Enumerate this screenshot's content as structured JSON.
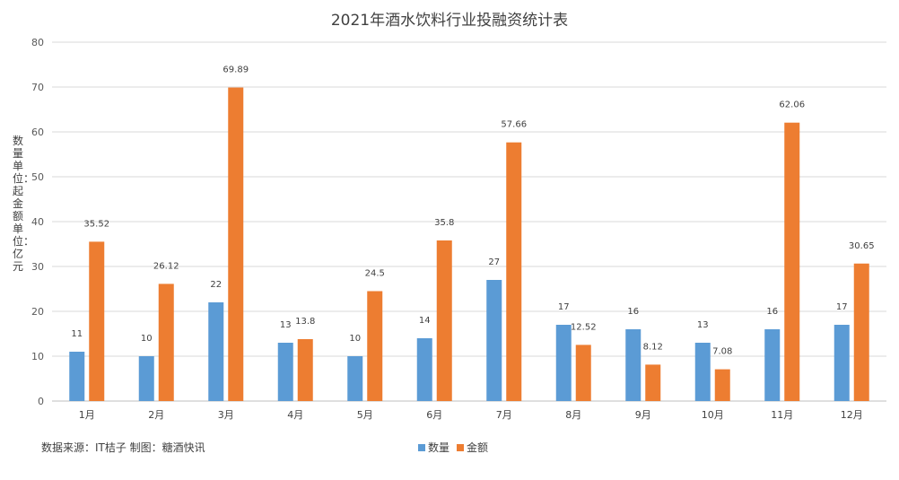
{
  "chart_data": {
    "type": "bar",
    "title": "2021年酒水饮料行业投融资统计表",
    "ylabel": "数量单位：起 金额单位：亿元",
    "ylim": [
      0,
      80
    ],
    "yticks": [
      0,
      10,
      20,
      30,
      40,
      50,
      60,
      70,
      80
    ],
    "grid": true,
    "legend_position": "bottom-center",
    "categories": [
      "1月",
      "2月",
      "3月",
      "4月",
      "5月",
      "6月",
      "7月",
      "8月",
      "9月",
      "10月",
      "11月",
      "12月"
    ],
    "series": [
      {
        "name": "数量",
        "color": "#5B9BD5",
        "values": [
          11,
          10,
          22,
          13,
          10,
          14,
          27,
          17,
          16,
          13,
          16,
          17
        ],
        "labels": [
          "11",
          "10",
          "22",
          "13",
          "10",
          "14",
          "27",
          "17",
          "16",
          "13",
          "16",
          "17"
        ]
      },
      {
        "name": "金额",
        "color": "#ED7D31",
        "values": [
          35.52,
          26.12,
          69.89,
          13.8,
          24.5,
          35.8,
          57.66,
          12.52,
          8.12,
          7.08,
          62.06,
          30.65
        ],
        "labels": [
          "35.52",
          "26.12",
          "69.89",
          "13.8",
          "24.5",
          "35.8",
          "57.66",
          "12.52",
          "8.12",
          "7.08",
          "62.06",
          "30.65"
        ]
      }
    ],
    "source_note": "数据来源：IT桔子 制图：糖酒快讯"
  }
}
